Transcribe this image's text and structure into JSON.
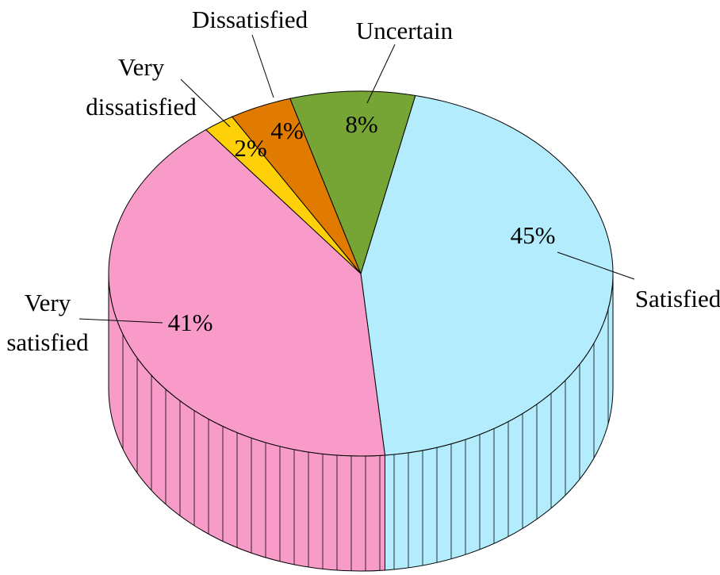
{
  "chart_data": {
    "type": "pie3d",
    "categories": [
      "Satisfied",
      "Very satisfied",
      "Very dissatisfied",
      "Dissatisfied",
      "Uncertain"
    ],
    "values": [
      45,
      41,
      2,
      4,
      8
    ],
    "value_labels": [
      "45%",
      "41%",
      "2%",
      "4%",
      "8%"
    ],
    "colors": [
      "#b3ecfc",
      "#f99bc9",
      "#fdd007",
      "#e07b00",
      "#77a535"
    ]
  }
}
